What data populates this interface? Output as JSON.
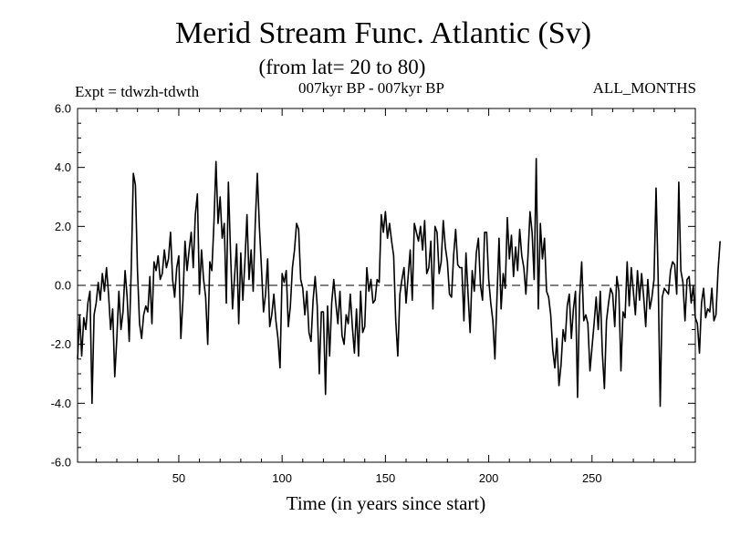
{
  "chart_data": {
    "type": "line",
    "title": "Merid Stream Func. Atlantic (Sv)",
    "subtitle": "(from lat= 20 to 80)",
    "header_left": "Expt = tdwzh-tdwth",
    "header_center": "007kyr BP - 007kyr BP",
    "header_right": "ALL_MONTHS",
    "xlabel": "Time (in years since start)",
    "ylabel": "",
    "xlim": [
      1,
      300
    ],
    "ylim": [
      -6.0,
      6.0
    ],
    "x_ticks": [
      50,
      100,
      150,
      200,
      250
    ],
    "x_tick_labels": [
      "50",
      "100",
      "150",
      "200",
      "250"
    ],
    "y_ticks": [
      -6.0,
      -4.0,
      -2.0,
      0.0,
      2.0,
      4.0,
      6.0
    ],
    "y_tick_labels": [
      "-6.0",
      "-4.0",
      "-2.0",
      "0.0",
      "2.0",
      "4.0",
      "6.0"
    ],
    "zero_line": "dashed",
    "grid": false,
    "series": [
      {
        "color": "#000000",
        "x_start": 1,
        "x_step": 1,
        "values": [
          -2.5,
          -1.0,
          -2.4,
          -1.1,
          -1.5,
          -0.6,
          -0.2,
          -4.0,
          -1.0,
          -0.6,
          0.1,
          -0.5,
          0.4,
          -0.2,
          0.6,
          -0.3,
          -1.5,
          -0.8,
          -3.1,
          -1.8,
          -0.2,
          -1.5,
          -0.9,
          0.5,
          -0.4,
          -1.9,
          0.6,
          3.8,
          3.4,
          0.5,
          -1.3,
          -1.8,
          -1.0,
          -0.7,
          -0.9,
          0.3,
          -1.3,
          0.8,
          0.5,
          1.0,
          0.2,
          0.4,
          1.2,
          0.6,
          0.9,
          1.8,
          0.2,
          -0.4,
          0.6,
          1.0,
          -1.8,
          -0.5,
          1.5,
          0.5,
          1.2,
          1.8,
          0.6,
          2.4,
          3.1,
          -0.3,
          1.2,
          0.2,
          -0.4,
          -2.0,
          0.8,
          0.5,
          2.1,
          4.2,
          2.1,
          3.0,
          1.6,
          2.1,
          -0.6,
          3.5,
          1.2,
          -0.8,
          0.3,
          1.4,
          -1.3,
          1.1,
          -0.5,
          0.8,
          2.4,
          0.2,
          1.2,
          -0.2,
          2.1,
          3.8,
          2.0,
          0.6,
          -0.9,
          -0.3,
          0.9,
          -1.4,
          -1.0,
          -0.3,
          -1.2,
          -1.8,
          -2.8,
          0.4,
          0.1,
          0.5,
          -1.4,
          -0.7,
          0.6,
          1.2,
          2.1,
          1.9,
          0.2,
          -0.1,
          -1.0,
          -0.2,
          -1.6,
          -1.9,
          -0.5,
          0.3,
          -0.7,
          -3.0,
          -0.9,
          -0.9,
          -3.7,
          -0.7,
          -2.4,
          -0.6,
          0.2,
          -0.6,
          -1.3,
          -0.2,
          -1.7,
          -2.0,
          -1.0,
          -1.3,
          -0.3,
          -1.4,
          -2.3,
          -0.8,
          -2.4,
          -0.2,
          -1.6,
          -1.4,
          0.6,
          -0.2,
          0.2,
          -0.6,
          -0.5,
          0.2,
          0.1,
          2.4,
          1.8,
          2.5,
          1.6,
          2.1,
          1.5,
          1.0,
          -1.2,
          -2.4,
          -0.3,
          0.2,
          0.6,
          -0.6,
          0.3,
          1.2,
          -0.5,
          2.1,
          1.8,
          1.5,
          2.0,
          1.2,
          2.2,
          0.4,
          0.6,
          1.5,
          -0.8,
          2.0,
          1.8,
          0.4,
          0.8,
          2.2,
          1.3,
          0.8,
          -0.3,
          -0.4,
          1.0,
          1.9,
          0.7,
          0.6,
          0.6,
          -1.2,
          1.1,
          -0.3,
          -1.6,
          0.5,
          -0.2,
          1.1,
          1.6,
          0.0,
          -0.5,
          1.8,
          1.8,
          0.2,
          -0.6,
          -1.2,
          -2.5,
          -0.4,
          1.6,
          -0.8,
          0.4,
          -0.1,
          2.3,
          0.9,
          1.7,
          0.3,
          1.3,
          0.5,
          1.9,
          1.0,
          0.6,
          -0.3,
          1.0,
          2.5,
          1.8,
          0.2,
          4.3,
          -0.8,
          2.1,
          0.9,
          1.6,
          -0.2,
          -0.4,
          -1.0,
          -2.2,
          -2.8,
          -1.8,
          -3.4,
          -2.7,
          -1.5,
          -1.9,
          -0.7,
          -0.3,
          -1.8,
          -0.8,
          -0.2,
          -3.8,
          -0.4,
          0.8,
          -1.2,
          -1.0,
          -1.3,
          -2.9,
          -2.1,
          -1.3,
          -0.4,
          -1.5,
          -0.2,
          -2.3,
          -3.5,
          -1.2,
          -0.6,
          -0.1,
          -0.3,
          -1.4,
          0.3,
          -0.2,
          -2.9,
          -0.9,
          -1.1,
          0.8,
          -0.7,
          0.6,
          -0.2,
          -1.0,
          0.5,
          -0.5,
          0.4,
          -0.4,
          -1.4,
          0.2,
          -0.8,
          -0.4,
          0.2,
          3.3,
          0.3,
          -4.1,
          -0.4,
          -0.1,
          -0.2,
          -0.3,
          0.5,
          0.8,
          0.7,
          -0.3,
          3.5,
          0.5,
          0.1,
          -1.2,
          0.2,
          0.3,
          -0.6,
          0.0,
          -1.1,
          -1.3,
          -2.3,
          -0.6,
          -0.1,
          -1.1,
          -0.8,
          -0.9,
          -0.1,
          -1.2,
          -1.0,
          0.5,
          1.5
        ]
      }
    ]
  }
}
